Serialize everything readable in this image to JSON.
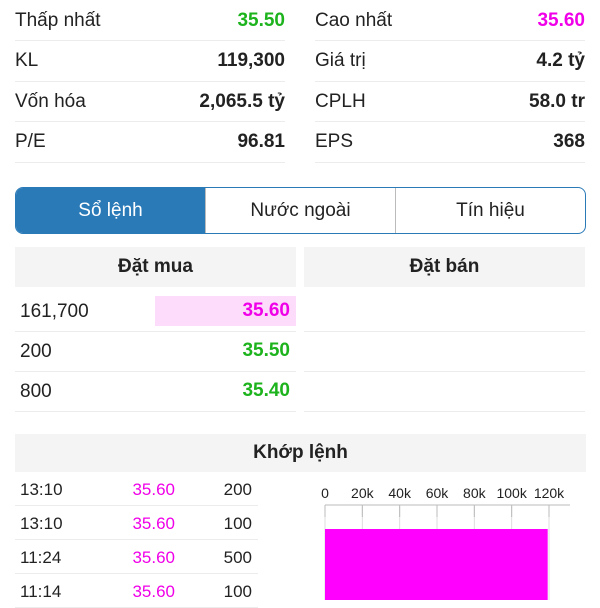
{
  "stats": [
    {
      "label": "Thấp nhất",
      "value": "35.50",
      "color": "#1db31d"
    },
    {
      "label": "Cao nhất",
      "value": "35.60",
      "color": "#f000e8"
    },
    {
      "label": "KL",
      "value": "119,300"
    },
    {
      "label": "Giá trị",
      "value": "4.2 tỷ"
    },
    {
      "label": "Vốn hóa",
      "value": "2,065.5 tỷ"
    },
    {
      "label": "CPLH",
      "value": "58.0 tr"
    },
    {
      "label": "P/E",
      "value": "96.81"
    },
    {
      "label": "EPS",
      "value": "368"
    }
  ],
  "tabs": [
    {
      "label": "Sổ lệnh",
      "active": true
    },
    {
      "label": "Nước ngoài"
    },
    {
      "label": "Tín hiệu"
    }
  ],
  "orderbook": {
    "buy_title": "Đặt mua",
    "sell_title": "Đặt bán",
    "buy": [
      {
        "qty": "161,700",
        "price": "35.60",
        "highlight": true
      },
      {
        "qty": "200",
        "price": "35.50"
      },
      {
        "qty": "800",
        "price": "35.40"
      }
    ]
  },
  "matched": {
    "title": "Khớp lệnh",
    "rows": [
      {
        "time": "13:10",
        "price": "35.60",
        "vol": "200"
      },
      {
        "time": "13:10",
        "price": "35.60",
        "vol": "100"
      },
      {
        "time": "11:24",
        "price": "35.60",
        "vol": "500"
      },
      {
        "time": "11:14",
        "price": "35.60",
        "vol": "100"
      }
    ]
  },
  "chart_data": {
    "type": "bar",
    "orientation": "horizontal",
    "ticks": [
      "0",
      "20k",
      "40k",
      "60k",
      "80k",
      "100k",
      "120k"
    ],
    "xlim": [
      0,
      120000
    ],
    "values": [
      119300
    ],
    "bar_color": "#ff00ff"
  }
}
